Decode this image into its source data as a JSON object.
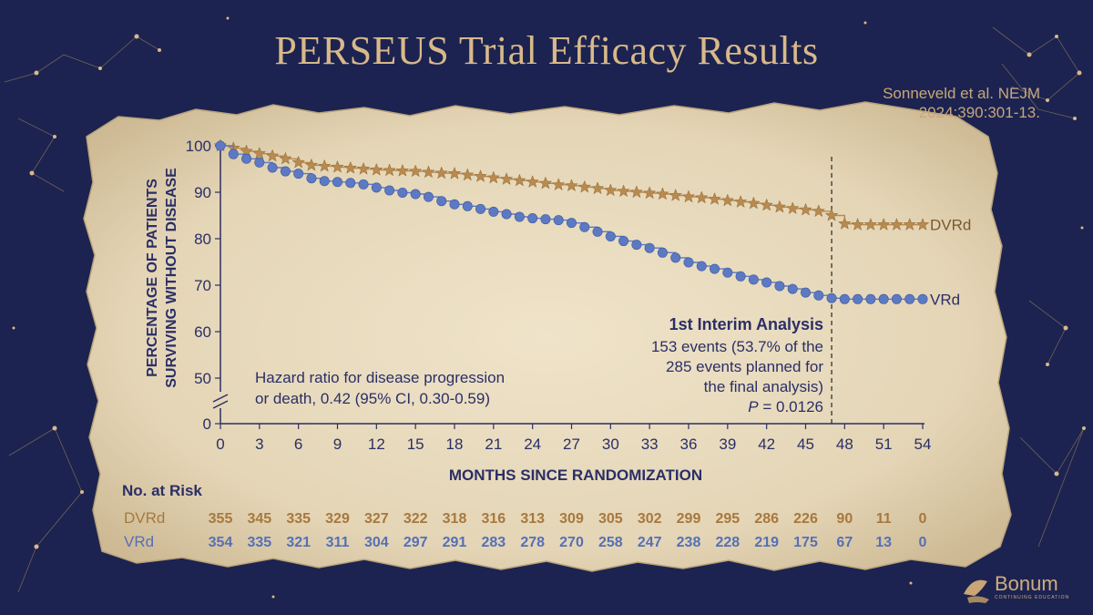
{
  "slide": {
    "title": "PERSEUS Trial Efficacy Results",
    "citation_line1": "Sonneveld et al. NEJM",
    "citation_line2": "2024;390:301-13.",
    "logo_text": "Bonum",
    "logo_subtext": "CONTINUING EDUCATION"
  },
  "colors": {
    "background": "#1c2350",
    "paper": "#e7d9bd",
    "dvrd": "#b98a4e",
    "vrd": "#5c79c2",
    "axis": "#2a2f66",
    "gold_accent": "#d9b98a"
  },
  "chart_data": {
    "type": "line",
    "title": "",
    "xlabel": "MONTHS SINCE RANDOMIZATION",
    "ylabel_line1": "PERCENTAGE OF PATIENTS",
    "ylabel_line2": "SURVIVING WITHOUT DISEASE",
    "xlim": [
      0,
      54
    ],
    "ylim": [
      45,
      100
    ],
    "axis_break": true,
    "x_ticks": [
      "0",
      "3",
      "6",
      "9",
      "12",
      "15",
      "18",
      "21",
      "24",
      "27",
      "30",
      "33",
      "36",
      "39",
      "42",
      "45",
      "48",
      "51",
      "54"
    ],
    "y_ticks": [
      "100",
      "90",
      "80",
      "70",
      "60",
      "50",
      "0"
    ],
    "series": [
      {
        "name": "DVRd",
        "marker": "star",
        "x": [
          0,
          1,
          2,
          3,
          4,
          5,
          6,
          7,
          8,
          9,
          10,
          11,
          12,
          13,
          14,
          15,
          16,
          17,
          18,
          19,
          20,
          21,
          22,
          23,
          24,
          25,
          26,
          27,
          28,
          29,
          30,
          31,
          32,
          33,
          34,
          35,
          36,
          37,
          38,
          39,
          40,
          41,
          42,
          43,
          44,
          45,
          46,
          47,
          48,
          49,
          50,
          51,
          52,
          53,
          54
        ],
        "y": [
          100,
          99.5,
          98.8,
          98.3,
          97.8,
          97.2,
          96.4,
          95.8,
          95.6,
          95.4,
          95.2,
          95.0,
          94.8,
          94.7,
          94.6,
          94.5,
          94.3,
          94.1,
          94.0,
          93.7,
          93.4,
          93.1,
          92.8,
          92.5,
          92.2,
          91.9,
          91.6,
          91.4,
          91.1,
          90.8,
          90.4,
          90.2,
          90.0,
          89.8,
          89.6,
          89.3,
          89.0,
          88.8,
          88.5,
          88.2,
          87.9,
          87.6,
          87.2,
          86.8,
          86.5,
          86.2,
          85.9,
          85.0,
          83.2,
          83.0,
          83.0,
          83.0,
          83.0,
          83.0,
          83.0
        ],
        "label": "DVRd"
      },
      {
        "name": "VRd",
        "marker": "circle",
        "x": [
          0,
          1,
          2,
          3,
          4,
          5,
          6,
          7,
          8,
          9,
          10,
          11,
          12,
          13,
          14,
          15,
          16,
          17,
          18,
          19,
          20,
          21,
          22,
          23,
          24,
          25,
          26,
          27,
          28,
          29,
          30,
          31,
          32,
          33,
          34,
          35,
          36,
          37,
          38,
          39,
          40,
          41,
          42,
          43,
          44,
          45,
          46,
          47,
          48,
          49,
          50,
          51,
          52,
          53,
          54
        ],
        "y": [
          100,
          98.2,
          97.2,
          96.4,
          95.3,
          94.5,
          94.0,
          93.0,
          92.4,
          92.2,
          92.0,
          91.7,
          91.0,
          90.4,
          89.9,
          89.6,
          89.0,
          88.1,
          87.4,
          87.0,
          86.4,
          85.8,
          85.3,
          84.7,
          84.4,
          84.2,
          84.0,
          83.4,
          82.5,
          81.5,
          80.5,
          79.5,
          78.7,
          78.0,
          77.0,
          75.9,
          74.9,
          74.1,
          73.5,
          72.7,
          71.9,
          71.2,
          70.6,
          69.8,
          69.2,
          68.4,
          67.8,
          67.2,
          67.0,
          67.0,
          67.0,
          67.0,
          67.0,
          67.0,
          67.0
        ],
        "label": "VRd"
      }
    ],
    "interim_line_x": 47,
    "annotation_interim": {
      "heading": "1st Interim Analysis",
      "line1": "153 events (53.7% of the",
      "line2": "285 events planned for",
      "line3": "the final analysis)",
      "p_label": "P",
      "p_value": " = 0.0126"
    },
    "annotation_hr": {
      "line1": "Hazard ratio for disease progression",
      "line2": "or death, 0.42 (95% CI, 0.30-0.59)"
    },
    "at_risk": {
      "heading": "No. at Risk",
      "rows": [
        {
          "name": "DVRd",
          "values": [
            "355",
            "345",
            "335",
            "329",
            "327",
            "322",
            "318",
            "316",
            "313",
            "309",
            "305",
            "302",
            "299",
            "295",
            "286",
            "226",
            "90",
            "11",
            "0"
          ]
        },
        {
          "name": "VRd",
          "values": [
            "354",
            "335",
            "321",
            "311",
            "304",
            "297",
            "291",
            "283",
            "278",
            "270",
            "258",
            "247",
            "238",
            "228",
            "219",
            "175",
            "67",
            "13",
            "0"
          ]
        }
      ]
    }
  }
}
